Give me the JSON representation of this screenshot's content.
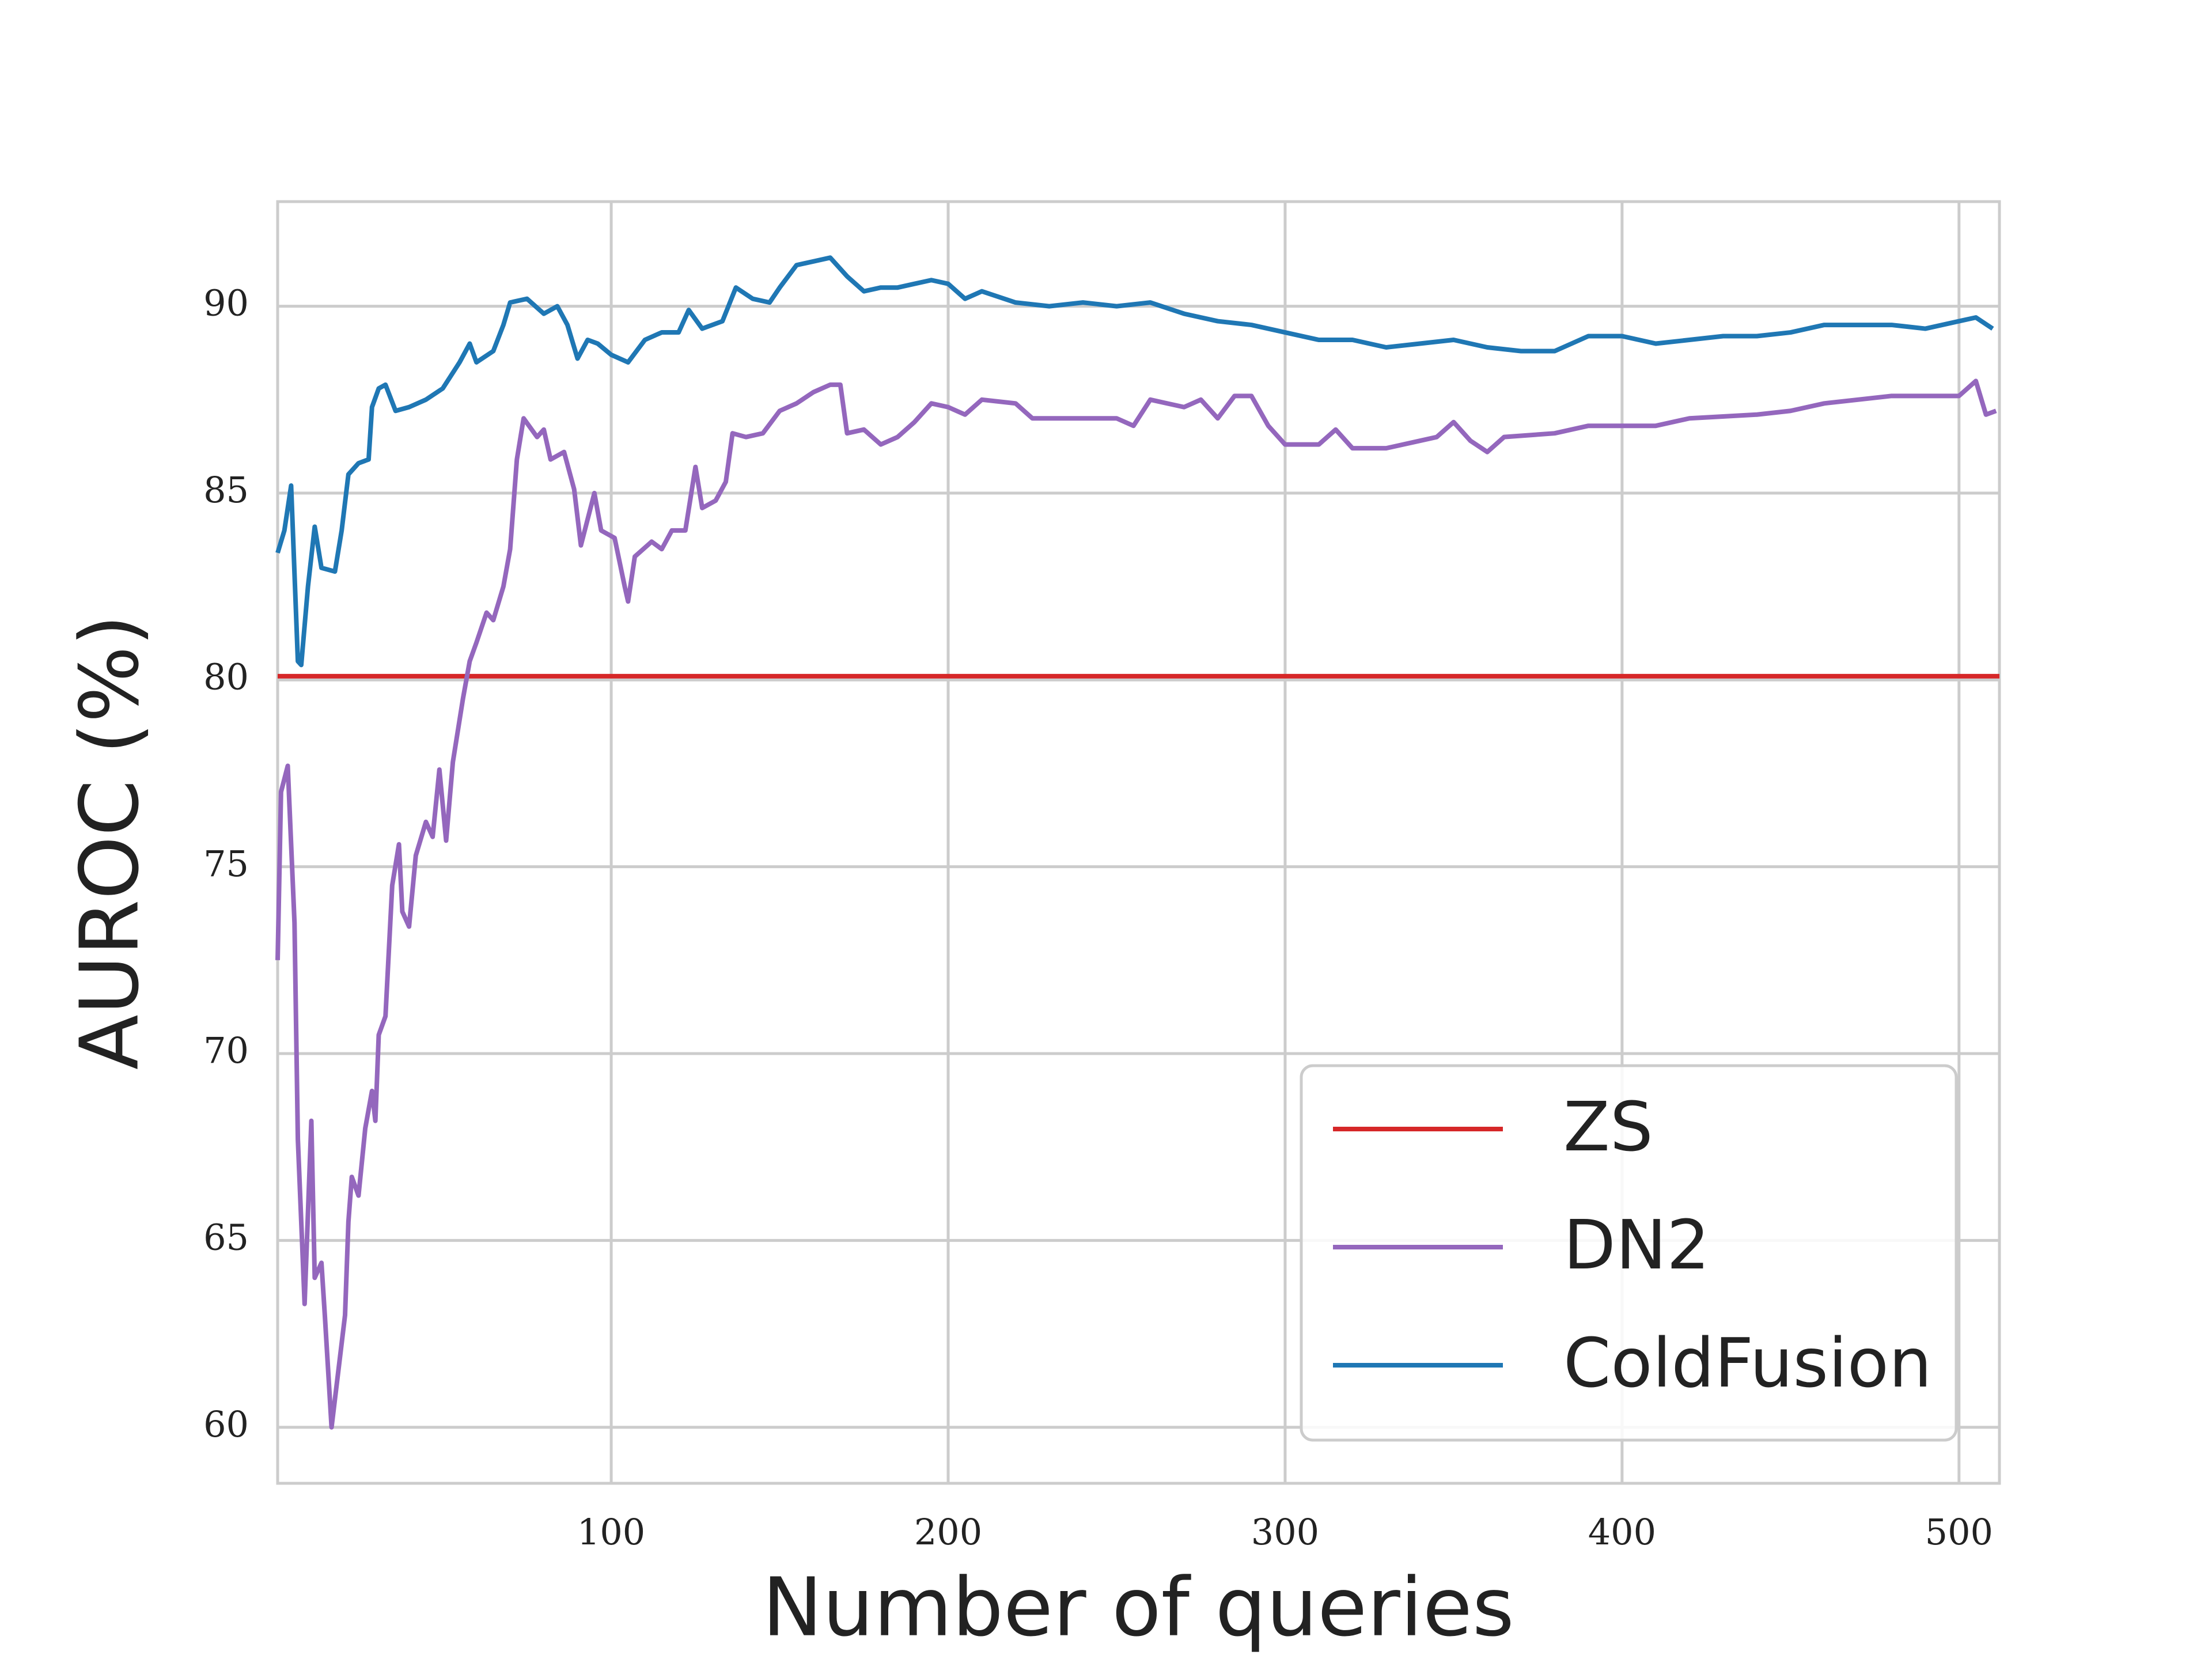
{
  "chart_data": {
    "type": "line",
    "xlabel": "Number of queries",
    "ylabel": "AUROC (%)",
    "xlim": [
      1,
      512
    ],
    "ylim": [
      58.5,
      92.8
    ],
    "xticks": [
      100,
      200,
      300,
      400,
      500
    ],
    "yticks": [
      60,
      65,
      70,
      75,
      80,
      85,
      90
    ],
    "grid": true,
    "legend": "lower right",
    "series": [
      {
        "name": "ZS",
        "color": "#d62728",
        "x": [
          1,
          512
        ],
        "values": [
          80.1,
          80.1
        ]
      },
      {
        "name": "DN2",
        "color": "#9467bd",
        "x": [
          1,
          2,
          4,
          6,
          7,
          9,
          11,
          12,
          14,
          15,
          17,
          19,
          21,
          22,
          23,
          25,
          27,
          29,
          30,
          31,
          33,
          35,
          37,
          38,
          40,
          42,
          45,
          47,
          49,
          51,
          53,
          56,
          58,
          60,
          63,
          65,
          68,
          70,
          72,
          74,
          78,
          80,
          82,
          86,
          89,
          91,
          93,
          95,
          97,
          101,
          104,
          105,
          107,
          112,
          115,
          118,
          122,
          125,
          127,
          131,
          134,
          136,
          140,
          145,
          150,
          155,
          160,
          165,
          168,
          170,
          175,
          180,
          185,
          190,
          195,
          200,
          205,
          210,
          220,
          225,
          230,
          240,
          250,
          255,
          260,
          270,
          275,
          280,
          285,
          290,
          295,
          300,
          310,
          315,
          320,
          330,
          340,
          345,
          350,
          355,
          360,
          365,
          380,
          390,
          400,
          410,
          420,
          440,
          450,
          460,
          470,
          480,
          490,
          500,
          505,
          508,
          511
        ],
        "values": [
          72.5,
          77,
          77.7,
          73.5,
          67.7,
          63.3,
          68.2,
          64,
          64.4,
          63,
          60,
          61.5,
          63,
          65.5,
          66.7,
          66.2,
          68,
          69,
          68.2,
          70.5,
          71,
          74.5,
          75.6,
          73.8,
          73.4,
          75.3,
          76.2,
          75.8,
          77.6,
          75.7,
          77.8,
          79.5,
          80.5,
          81,
          81.8,
          81.6,
          82.5,
          83.5,
          85.9,
          87,
          86.5,
          86.7,
          85.9,
          86.1,
          85.1,
          83.6,
          84.3,
          85,
          84,
          83.8,
          82.5,
          82.1,
          83.3,
          83.7,
          83.5,
          84,
          84,
          85.7,
          84.6,
          84.8,
          85.3,
          86.6,
          86.5,
          86.6,
          87.2,
          87.4,
          87.7,
          87.9,
          87.9,
          86.6,
          86.7,
          86.3,
          86.5,
          86.9,
          87.4,
          87.3,
          87.1,
          87.5,
          87.4,
          87.0,
          87.0,
          87.0,
          87.0,
          86.8,
          87.5,
          87.3,
          87.5,
          87.0,
          87.6,
          87.6,
          86.8,
          86.3,
          86.3,
          86.7,
          86.2,
          86.2,
          86.4,
          86.5,
          86.9,
          86.4,
          86.1,
          86.5,
          86.6,
          86.8,
          86.8,
          86.8,
          87.0,
          87.1,
          87.2,
          87.4,
          87.5,
          87.6,
          87.6,
          87.6,
          88.0,
          87.1,
          87.2
        ]
      },
      {
        "name": "ColdFusion",
        "color": "#1f77b4",
        "x": [
          1,
          3,
          5,
          7,
          8,
          10,
          12,
          14,
          18,
          20,
          22,
          25,
          28,
          29,
          31,
          33,
          36,
          40,
          45,
          50,
          55,
          58,
          60,
          65,
          68,
          70,
          75,
          80,
          84,
          87,
          90,
          93,
          96,
          100,
          105,
          110,
          115,
          120,
          123,
          127,
          133,
          137,
          142,
          147,
          150,
          155,
          160,
          165,
          170,
          175,
          180,
          185,
          190,
          195,
          200,
          205,
          210,
          220,
          230,
          240,
          250,
          260,
          270,
          280,
          290,
          300,
          310,
          320,
          330,
          340,
          350,
          360,
          370,
          380,
          390,
          400,
          410,
          420,
          430,
          440,
          450,
          460,
          470,
          480,
          490,
          500,
          505,
          510
        ],
        "values": [
          83.4,
          84,
          85.2,
          80.5,
          80.4,
          82.5,
          84.1,
          83,
          82.9,
          84,
          85.5,
          85.8,
          85.9,
          87.3,
          87.8,
          87.9,
          87.2,
          87.3,
          87.5,
          87.8,
          88.5,
          89,
          88.5,
          88.8,
          89.5,
          90.1,
          90.2,
          89.8,
          90,
          89.5,
          88.6,
          89.1,
          89,
          88.7,
          88.5,
          89.1,
          89.3,
          89.3,
          89.9,
          89.4,
          89.6,
          90.5,
          90.2,
          90.1,
          90.5,
          91.1,
          91.2,
          91.3,
          90.8,
          90.4,
          90.5,
          90.5,
          90.6,
          90.7,
          90.6,
          90.2,
          90.4,
          90.1,
          90.0,
          90.1,
          90.0,
          90.1,
          89.8,
          89.6,
          89.5,
          89.3,
          89.1,
          89.1,
          88.9,
          89.0,
          89.1,
          88.9,
          88.8,
          88.8,
          89.2,
          89.2,
          89.0,
          89.1,
          89.2,
          89.2,
          89.3,
          89.5,
          89.5,
          89.5,
          89.4,
          89.6,
          89.7,
          89.4
        ]
      }
    ]
  }
}
